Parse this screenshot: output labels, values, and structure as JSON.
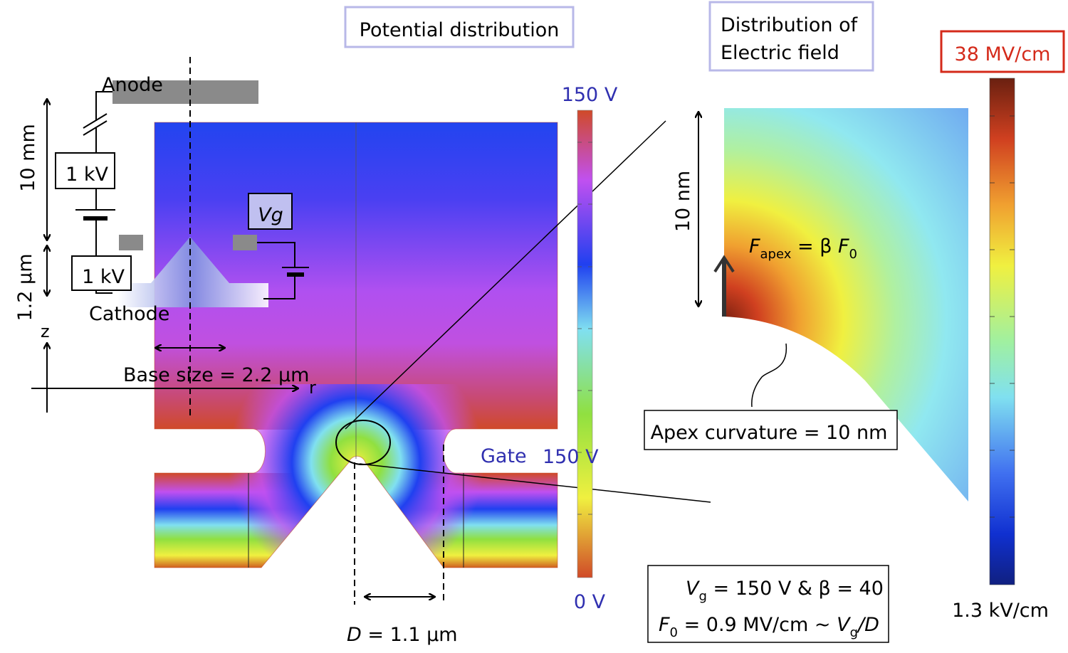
{
  "titles": {
    "potential": "Potential distribution",
    "field_line1": "Distribution of",
    "field_line2": "Electric field"
  },
  "circuit": {
    "anode": "Anode",
    "cathode": "Cathode",
    "source1": "1 kV",
    "source2": "1 kV",
    "gate_source": "Vg",
    "dim_10mm": "10 mm",
    "dim_1_2um": "1.2 µm",
    "axis_z": "z",
    "axis_r": "r",
    "base_size": "Base size = 2.2 µm"
  },
  "potential_plot": {
    "colorbar_max": "150 V",
    "colorbar_min": "0 V",
    "gate_label": "Gate",
    "gate_value": "150 V",
    "d_label_var": "D",
    "d_label_rest": " = 1.1 µm"
  },
  "field_plot": {
    "colorbar_max": "38 MV/cm",
    "colorbar_min": "1.3 kV/cm",
    "dim_10nm": "10 nm",
    "fapex_F": "F",
    "fapex_sub": "apex",
    "fapex_eq": " = β ",
    "fapex_F0": "F",
    "fapex_F0_sub": "0",
    "apex_curvature": "Apex curvature = 10 nm",
    "eq1_V": "V",
    "eq1_sub": "g",
    "eq1_rest": " = 150 V & β = 40",
    "eq2_F": "F",
    "eq2_sub": "0",
    "eq2_mid": " = 0.9 MV/cm ~ ",
    "eq2_V": "V",
    "eq2_Vsub": "g",
    "eq2_end": "/D"
  },
  "colors": {
    "title_border": "#b8b8e8",
    "max_field_border": "#d42a1a",
    "label_blue": "#3030b0"
  }
}
